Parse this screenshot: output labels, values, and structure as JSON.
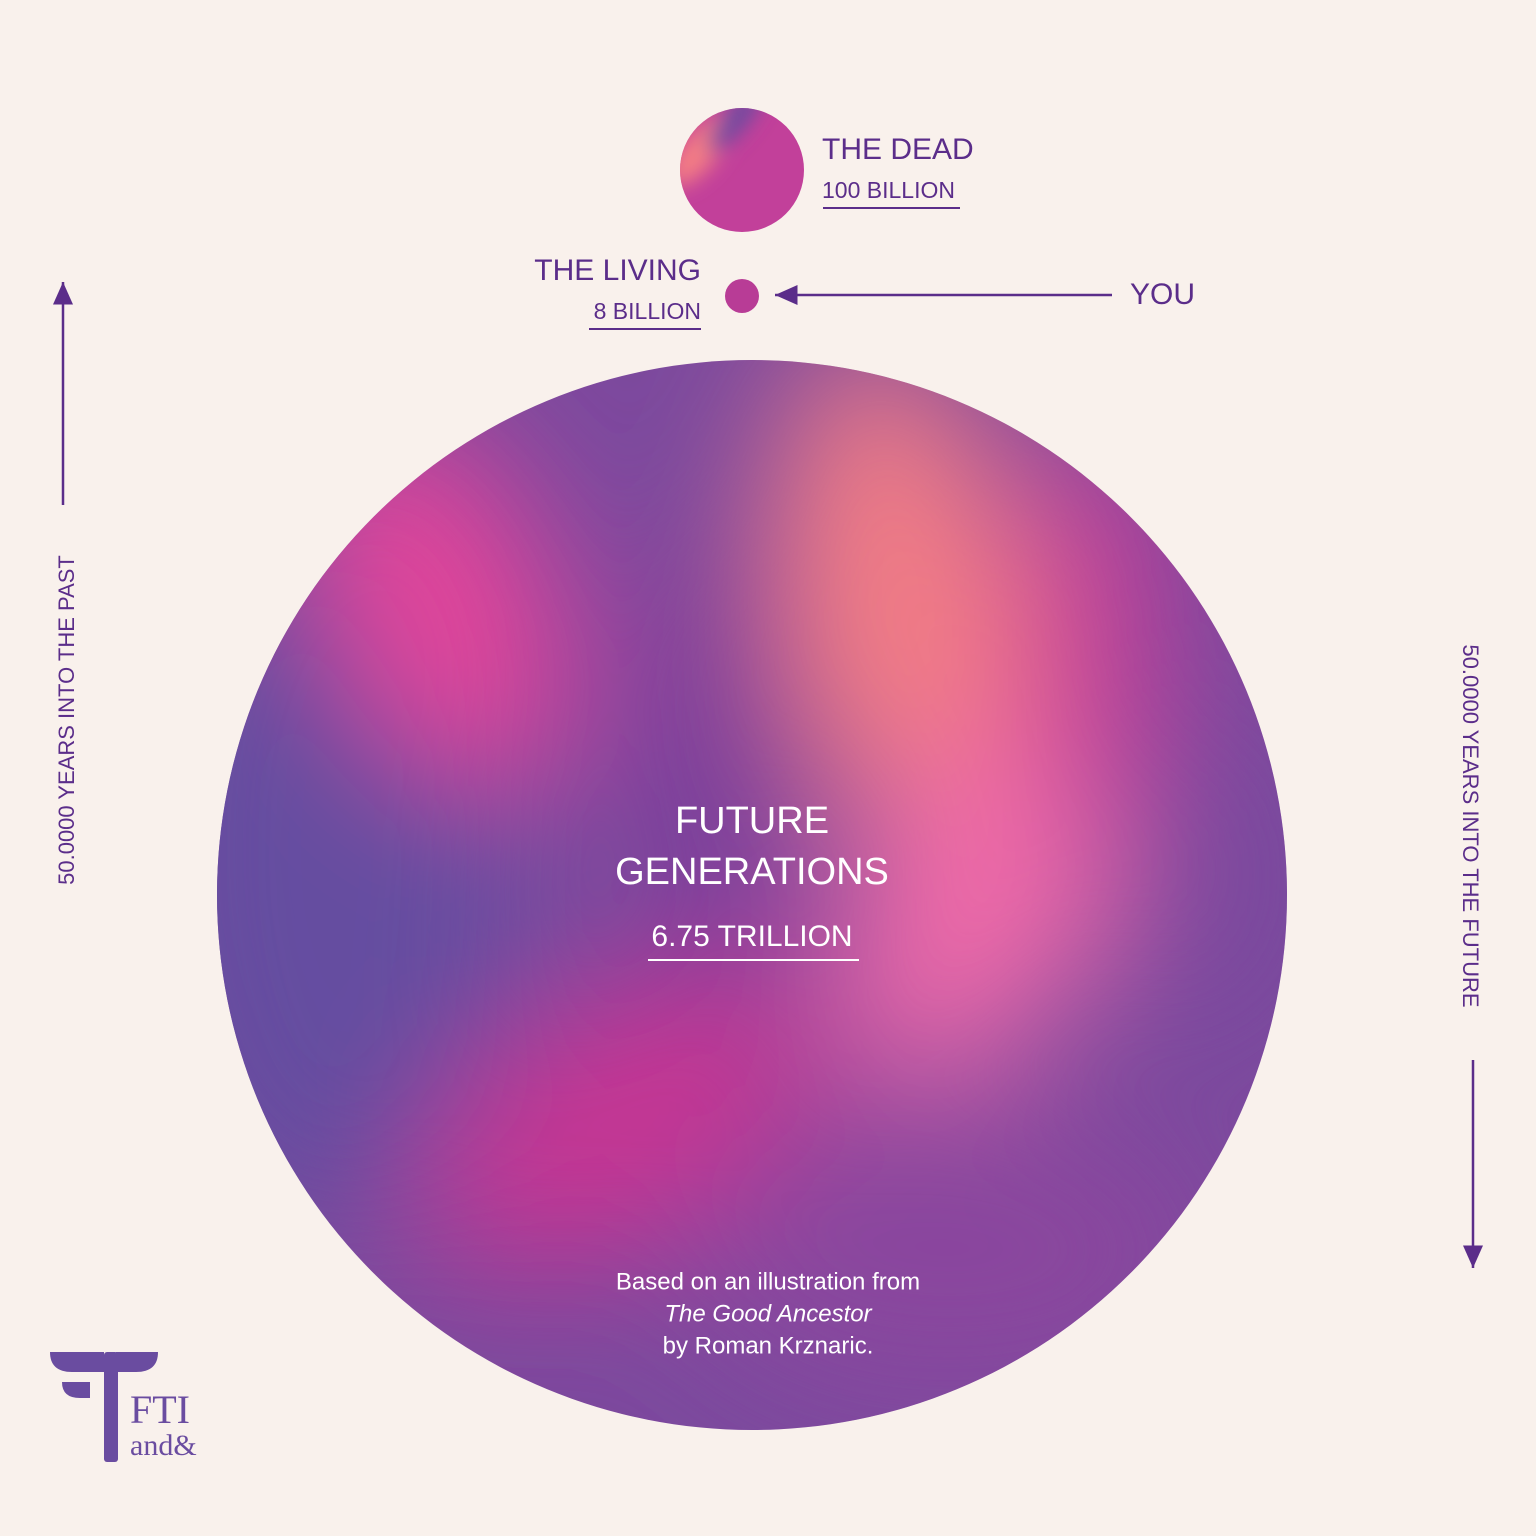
{
  "dead": {
    "label": "THE DEAD",
    "value": "100 BILLION"
  },
  "living": {
    "label": "THE LIVING",
    "value": "8 BILLION"
  },
  "you": "YOU",
  "future": {
    "label": [
      "FUTURE",
      "GENERATIONS"
    ],
    "value": "6.75 TRILLION"
  },
  "credit": [
    "Based on an illustration from",
    "The Good Ancestor",
    "by Roman Krznaric."
  ],
  "axis": {
    "past": "50.0000 YEARS INTO THE PAST",
    "future": "50.0000 YEARS INTO THE FUTURE"
  },
  "logo": {
    "name": "FTI",
    "sub": "and&"
  }
}
